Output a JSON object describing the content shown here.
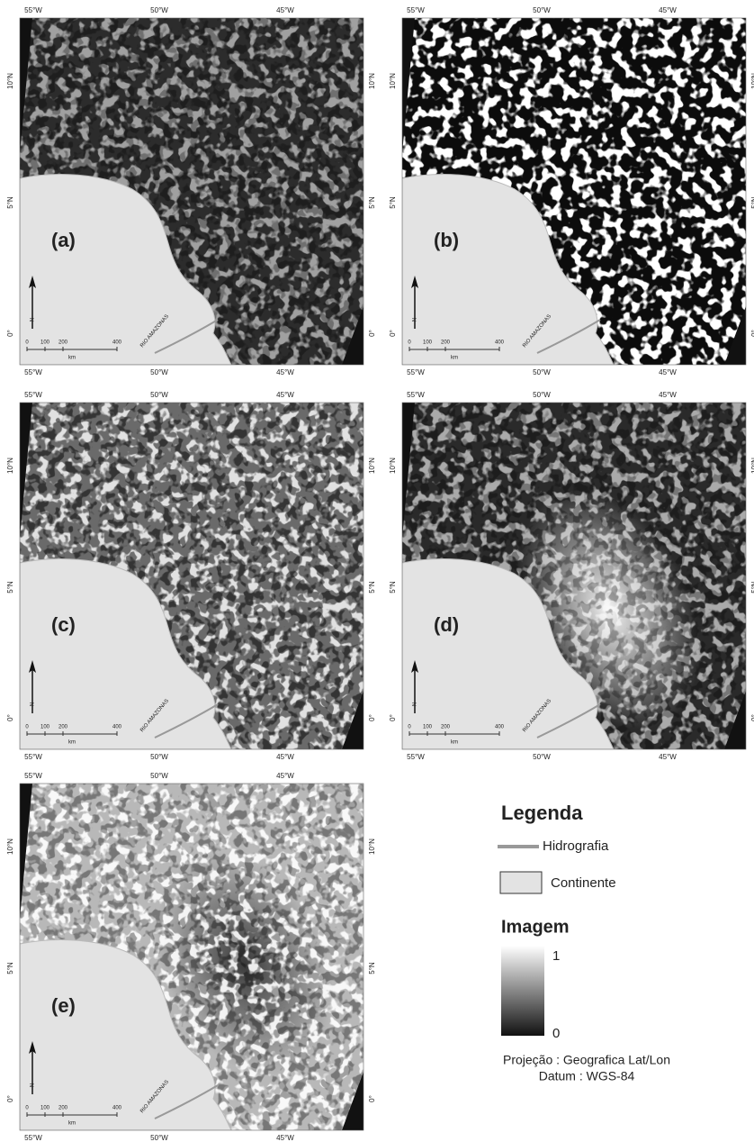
{
  "panels": [
    {
      "label": "(a)"
    },
    {
      "label": "(b)"
    },
    {
      "label": "(c)"
    },
    {
      "label": "(d)"
    },
    {
      "label": "(e)"
    }
  ],
  "graticule": {
    "lon": [
      "55°W",
      "50°W",
      "45°W"
    ],
    "lat": [
      "10°N",
      "5°N",
      "0°"
    ]
  },
  "scale_bar": {
    "ticks": [
      "0",
      "100",
      "200",
      "400"
    ],
    "unit": "km"
  },
  "north": "N",
  "river": "RIO AMAZONAS",
  "legend": {
    "title": "Legenda",
    "hydro": "Hidrografia",
    "land": "Continente",
    "image_title": "Imagem",
    "image_max": "1",
    "image_min": "0",
    "projection": "Projeção : Geografica Lat/Lon",
    "datum": "Datum : WGS-84"
  }
}
